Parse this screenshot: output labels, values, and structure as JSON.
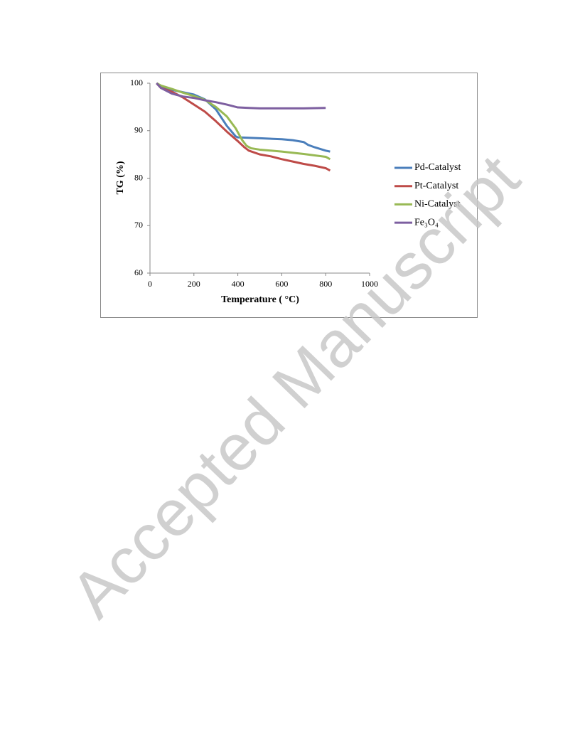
{
  "chart_data": {
    "type": "line",
    "xlabel": "Temperature ( °C)",
    "ylabel": "TG (%)",
    "xlim": [
      0,
      1000
    ],
    "xticks": [
      0,
      200,
      400,
      600,
      800,
      1000
    ],
    "ylim": [
      60,
      100
    ],
    "yticks": [
      60,
      70,
      80,
      90,
      100
    ],
    "grid": false,
    "legend": "right",
    "series": [
      {
        "name": "Pd-Catalyst",
        "color": "#4a7ebb",
        "x": [
          30,
          50,
          100,
          150,
          200,
          250,
          300,
          350,
          390,
          400,
          450,
          500,
          600,
          650,
          700,
          720,
          750,
          800,
          820
        ],
        "values": [
          100,
          99.3,
          98.6,
          98.1,
          97.6,
          96.6,
          94.5,
          91,
          88.8,
          88.6,
          88.5,
          88.4,
          88.2,
          88,
          87.6,
          87,
          86.5,
          85.8,
          85.6
        ]
      },
      {
        "name": "Pt-Catalyst",
        "color": "#be4b48",
        "x": [
          30,
          50,
          100,
          150,
          200,
          250,
          300,
          350,
          400,
          430,
          450,
          500,
          550,
          600,
          650,
          700,
          750,
          800,
          820
        ],
        "values": [
          100,
          99,
          98.2,
          97,
          95.5,
          94,
          92,
          89.8,
          87.8,
          86.5,
          85.8,
          85,
          84.6,
          84,
          83.5,
          83,
          82.6,
          82.1,
          81.6
        ]
      },
      {
        "name": "Ni-Catalyst",
        "color": "#98b954",
        "x": [
          30,
          50,
          100,
          150,
          200,
          250,
          300,
          350,
          390,
          420,
          440,
          460,
          500,
          600,
          700,
          800,
          820
        ],
        "values": [
          100,
          99.5,
          98.8,
          98,
          97.3,
          96.5,
          95,
          93,
          90.5,
          88,
          86.8,
          86.3,
          86,
          85.6,
          85.1,
          84.5,
          84
        ]
      },
      {
        "name": "Fe₃O₄",
        "color": "#7d5fa0",
        "x": [
          30,
          50,
          100,
          150,
          200,
          250,
          300,
          350,
          400,
          450,
          500,
          600,
          700,
          800
        ],
        "values": [
          100,
          99,
          97.8,
          97.2,
          96.9,
          96.4,
          96,
          95.5,
          94.9,
          94.8,
          94.7,
          94.7,
          94.7,
          94.8
        ]
      }
    ]
  },
  "watermark": "Accepted Manuscript"
}
